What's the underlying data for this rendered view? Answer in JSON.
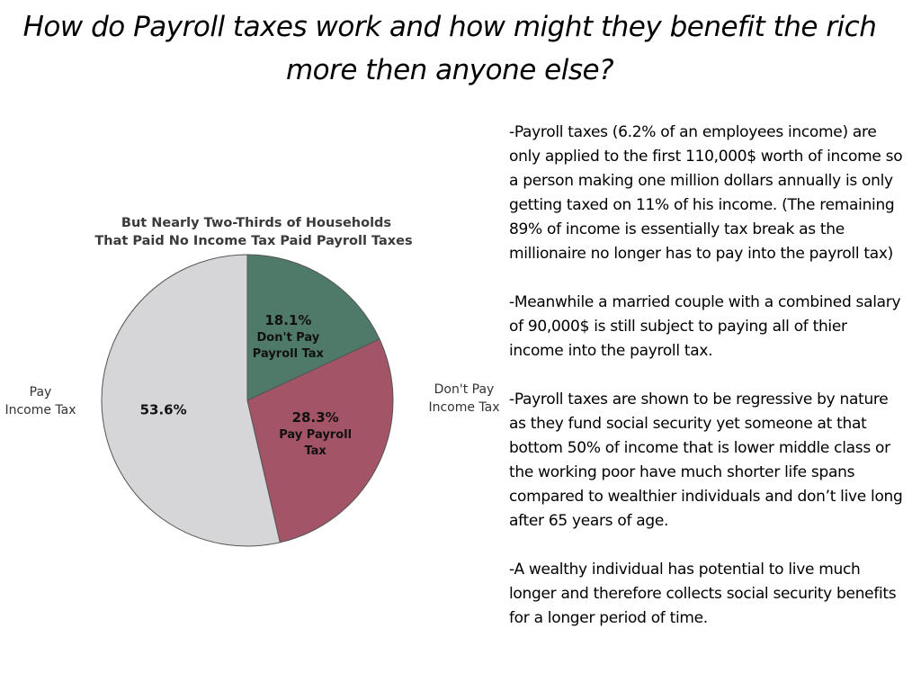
{
  "title": {
    "line1": "How do Payroll taxes work and how might they benefit the rich",
    "line2": "more then anyone else?"
  },
  "chart_data": {
    "type": "pie",
    "title": [
      "But Nearly Two-Thirds of Households",
      "That Paid No Income Tax Paid Payroll Taxes"
    ],
    "slices": [
      {
        "value": 18.1,
        "label": "18.1%",
        "sub": [
          "Don't Pay",
          "Payroll Tax"
        ],
        "color": "#4f7a6a"
      },
      {
        "value": 28.3,
        "label": "28.3%",
        "sub": [
          "Pay Payroll",
          "Tax"
        ],
        "color": "#a45467"
      },
      {
        "value": 53.6,
        "label": "53.6%",
        "sub": [],
        "color": "#d6d6d8"
      }
    ],
    "side_labels": {
      "left": [
        "Pay",
        "Income Tax"
      ],
      "right": [
        "Don't Pay",
        "Income Tax"
      ]
    },
    "start_angle_deg": 0,
    "direction": "clockwise"
  },
  "bullets": [
    "-Payroll taxes (6.2% of an employees income) are only applied to the first 110,000$ worth of income so a person making one million dollars annually is only getting taxed on 11% of his income. (The remaining 89% of income is essentially tax break as the millionaire no longer has to pay into the payroll tax)",
    "-Meanwhile a married couple with a combined salary of 90,000$ is still subject to paying all of thier income into the payroll tax.",
    "-Payroll taxes are shown to be regressive by nature as they fund social security yet someone at that bottom 50% of income that is lower middle class or the working poor have much shorter life spans compared to wealthier individuals and don’t live long after 65 years of age.",
    "-A wealthy individual has potential to live much longer and therefore collects social security benefits for a longer period of time."
  ]
}
